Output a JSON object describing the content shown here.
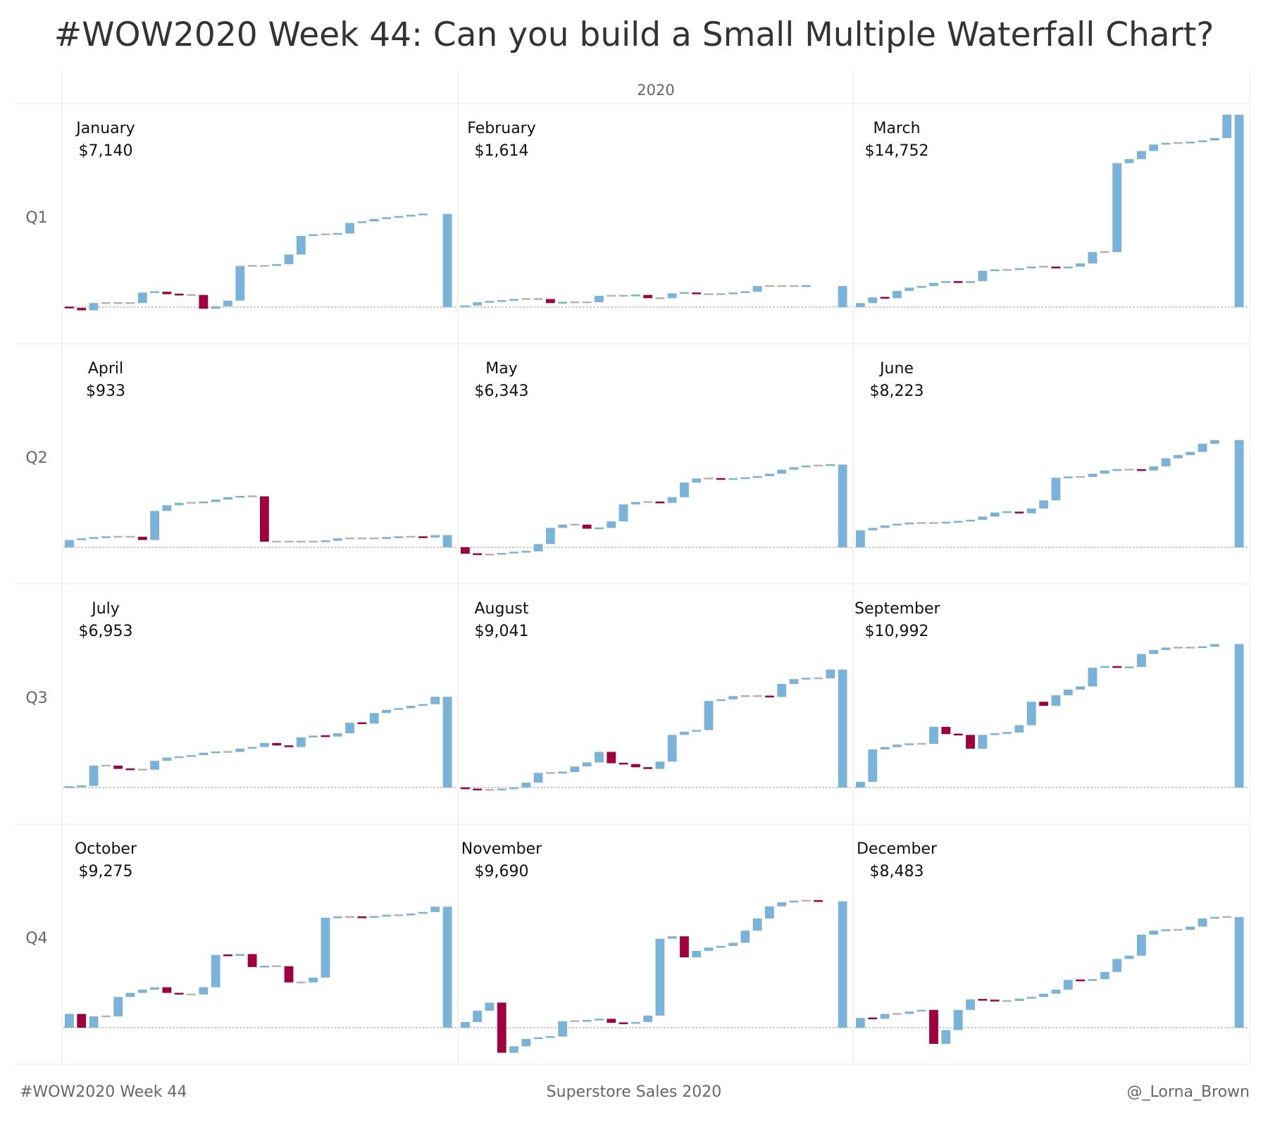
{
  "title": "#WOW2020 Week 44: Can you build a Small Multiple Waterfall Chart?",
  "footer": {
    "left": "#WOW2020 Week 44",
    "center": "Superstore Sales 2020",
    "right": "@_Lorna_Brown"
  },
  "chart_data": {
    "type": "waterfall small multiples",
    "column_header": "2020",
    "row_labels": [
      "Q1",
      "Q2",
      "Q3",
      "Q4"
    ],
    "colors": {
      "increase": "#79b3d9",
      "decrease": "#a1003e",
      "no_change": "#bdb3ae",
      "baseline": "#b0b0b0"
    },
    "value_unit": "USD, running total of daily sales within month",
    "months": [
      {
        "name": "January",
        "total_label": "$7,140",
        "total": 7140,
        "running_total": [
          -62,
          -248,
          310,
          310,
          310,
          310,
          1116,
          1178,
          992,
          930,
          930,
          -124,
          62,
          496,
          3162,
          3162,
          3162,
          3286,
          4030,
          5456,
          5580,
          5580,
          5642,
          6448,
          6572,
          6758,
          6882,
          6944,
          7068,
          7140
        ]
      },
      {
        "name": "February",
        "total_label": "$1,614",
        "total": 1614,
        "running_total": [
          124,
          372,
          434,
          496,
          620,
          620,
          620,
          310,
          372,
          372,
          372,
          868,
          868,
          868,
          930,
          682,
          682,
          1054,
          1116,
          992,
          992,
          992,
          1116,
          1178,
          1612,
          1612,
          1612,
          1612,
          1614
        ]
      },
      {
        "name": "March",
        "total_label": "$14,752",
        "total": 14752,
        "running_total": [
          310,
          744,
          682,
          1240,
          1488,
          1612,
          1860,
          1984,
          1860,
          1984,
          2790,
          2852,
          2852,
          2976,
          3100,
          3100,
          2976,
          3100,
          3348,
          4216,
          4216,
          11036,
          11346,
          11966,
          12462,
          12586,
          12586,
          12648,
          12772,
          12958,
          14752
        ]
      },
      {
        "name": "April",
        "total_label": "$933",
        "total": 933,
        "running_total": [
          558,
          682,
          744,
          806,
          806,
          806,
          558,
          2790,
          3224,
          3410,
          3410,
          3472,
          3658,
          3844,
          3906,
          3906,
          434,
          434,
          434,
          434,
          434,
          496,
          682,
          682,
          682,
          682,
          744,
          806,
          806,
          744,
          933
        ]
      },
      {
        "name": "May",
        "total_label": "$6,343",
        "total": 6343,
        "running_total": [
          -496,
          -558,
          -558,
          -434,
          -372,
          -310,
          248,
          1488,
          1736,
          1736,
          1426,
          1488,
          1984,
          3286,
          3472,
          3472,
          3410,
          3844,
          4960,
          5270,
          5270,
          5208,
          5270,
          5332,
          5456,
          5642,
          5952,
          6138,
          6262,
          6262,
          6343
        ]
      },
      {
        "name": "June",
        "total_label": "$8,223",
        "total": 8223,
        "running_total": [
          1302,
          1488,
          1674,
          1798,
          1860,
          1860,
          1860,
          1922,
          1984,
          2108,
          2356,
          2666,
          2728,
          2604,
          2976,
          3596,
          5332,
          5394,
          5394,
          5642,
          5890,
          5952,
          5952,
          5890,
          6200,
          6820,
          7068,
          7316,
          7936,
          8223
        ]
      },
      {
        "name": "July",
        "total_label": "$6,953",
        "total": 6953,
        "running_total": [
          62,
          124,
          1674,
          1674,
          1426,
          1364,
          1364,
          2046,
          2294,
          2356,
          2480,
          2666,
          2728,
          2728,
          2976,
          3100,
          3410,
          3224,
          3100,
          3844,
          3968,
          3906,
          4154,
          4960,
          4898,
          5704,
          5952,
          6076,
          6262,
          6386,
          6953
        ]
      },
      {
        "name": "August",
        "total_label": "$9,041",
        "total": 9041,
        "running_total": [
          -124,
          -186,
          -186,
          -124,
          0,
          372,
          1116,
          1116,
          1178,
          1612,
          1922,
          2728,
          1860,
          1798,
          1550,
          1426,
          1984,
          4030,
          4278,
          4402,
          6634,
          6758,
          7006,
          7006,
          7006,
          6944,
          7936,
          8308,
          8370,
          8370,
          9041
        ]
      },
      {
        "name": "September",
        "total_label": "$10,992",
        "total": 10992,
        "running_total": [
          434,
          2914,
          3100,
          3286,
          3348,
          3348,
          4650,
          4092,
          4030,
          2976,
          4030,
          4154,
          4216,
          4774,
          6572,
          6262,
          7068,
          7502,
          7750,
          9176,
          9300,
          9176,
          9238,
          10230,
          10540,
          10726,
          10726,
          10726,
          10788,
          10992
        ]
      },
      {
        "name": "October",
        "total_label": "$9,275",
        "total": 9275,
        "running_total": [
          1054,
          0,
          868,
          868,
          2356,
          2666,
          2914,
          3100,
          2666,
          2542,
          2542,
          3100,
          5580,
          5518,
          5642,
          4650,
          4712,
          4712,
          3472,
          3472,
          3844,
          8432,
          8494,
          8494,
          8432,
          8556,
          8618,
          8618,
          8742,
          8866,
          9275
        ]
      },
      {
        "name": "November",
        "total_label": "$9,690",
        "total": 9690,
        "running_total": [
          434,
          1302,
          1922,
          -1922,
          -1426,
          -868,
          -744,
          -682,
          496,
          496,
          558,
          682,
          372,
          310,
          434,
          930,
          6820,
          7006,
          5394,
          5890,
          6138,
          6262,
          6510,
          7440,
          8370,
          9300,
          9610,
          9734,
          9734,
          9690
        ]
      },
      {
        "name": "December",
        "total_label": "$8,483",
        "total": 8483,
        "running_total": [
          744,
          682,
          1054,
          1054,
          1240,
          1364,
          -1240,
          -186,
          1364,
          2170,
          2108,
          2046,
          2046,
          2232,
          2356,
          2604,
          2914,
          3658,
          3596,
          3720,
          4278,
          5270,
          5518,
          7130,
          7440,
          7502,
          7502,
          7750,
          8370,
          8483,
          8483
        ]
      }
    ]
  }
}
